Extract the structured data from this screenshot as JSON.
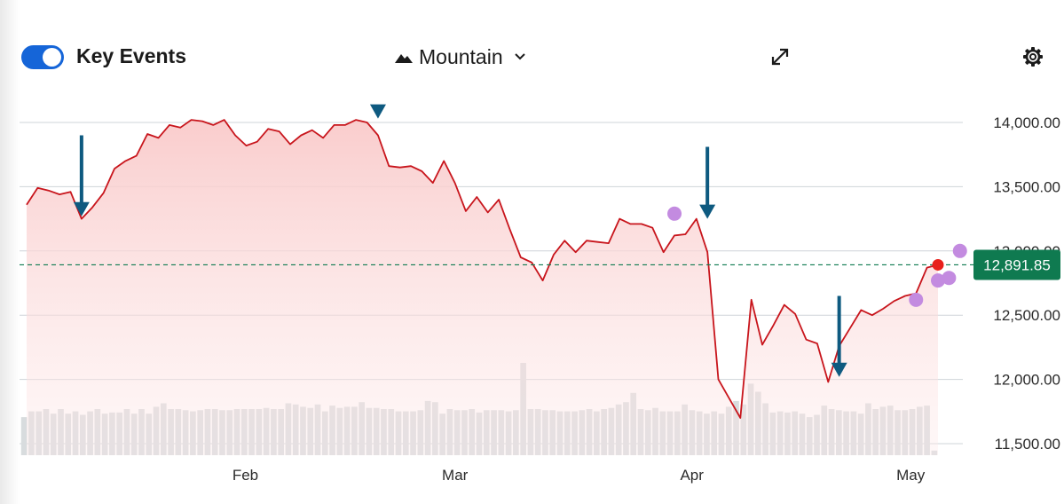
{
  "toolbar": {
    "toggle_label": "Key Events",
    "toggle_on": true,
    "chart_type_label": "Mountain",
    "chart_type_icon": "mountain-icon",
    "dropdown_icon": "chevron-down-icon",
    "expand_icon": "expand-arrows-icon",
    "settings_icon": "gear-icon"
  },
  "colors": {
    "line": "#c8151c",
    "area_top": "#f9caca",
    "volume": "#d8dcde",
    "grid": "#cfd4d8",
    "accent": "#1565d8",
    "price_tag": "#0f7a50",
    "event_dot": "#c38be0",
    "last_dot": "#e8211c",
    "arrow": "#0e5a80"
  },
  "chart_data": {
    "type": "area",
    "title": "",
    "xlabel": "",
    "ylabel": "",
    "x_range": [
      0,
      100
    ],
    "ylim": [
      11450,
      14130
    ],
    "y_ticks": [
      11500,
      12000,
      12500,
      13000,
      13500,
      14000
    ],
    "y_tick_labels": [
      "11,500.00",
      "12,000.00",
      "12,500.00",
      "13,000.00",
      "13,500.00",
      "14,000.00"
    ],
    "x_ticks": [
      {
        "label": "Feb",
        "x": 24
      },
      {
        "label": "Mar",
        "x": 47
      },
      {
        "label": "Apr",
        "x": 73
      },
      {
        "label": "May",
        "x": 97
      }
    ],
    "grid": true,
    "series": [
      {
        "values": [
          [
            0,
            13360
          ],
          [
            1,
            13490
          ],
          [
            2,
            13470
          ],
          [
            3,
            13440
          ],
          [
            4,
            13460
          ],
          [
            5,
            13250
          ],
          [
            6,
            13340
          ],
          [
            7,
            13450
          ],
          [
            8,
            13640
          ],
          [
            9,
            13700
          ],
          [
            10,
            13740
          ],
          [
            11,
            13910
          ],
          [
            12,
            13880
          ],
          [
            13,
            13980
          ],
          [
            14,
            13960
          ],
          [
            15,
            14020
          ],
          [
            16,
            14010
          ],
          [
            17,
            13980
          ],
          [
            18,
            14020
          ],
          [
            19,
            13900
          ],
          [
            20,
            13820
          ],
          [
            21,
            13850
          ],
          [
            22,
            13950
          ],
          [
            23,
            13930
          ],
          [
            24,
            13830
          ],
          [
            25,
            13900
          ],
          [
            26,
            13940
          ],
          [
            27,
            13880
          ],
          [
            28,
            13980
          ],
          [
            29,
            13980
          ],
          [
            30,
            14020
          ],
          [
            31,
            14000
          ],
          [
            32,
            13900
          ],
          [
            33,
            13660
          ],
          [
            34,
            13650
          ],
          [
            35,
            13660
          ],
          [
            36,
            13620
          ],
          [
            37,
            13530
          ],
          [
            38,
            13700
          ],
          [
            39,
            13530
          ],
          [
            40,
            13310
          ],
          [
            41,
            13420
          ],
          [
            42,
            13300
          ],
          [
            43,
            13400
          ],
          [
            44,
            13170
          ],
          [
            45,
            12950
          ],
          [
            46,
            12910
          ],
          [
            47,
            12770
          ],
          [
            48,
            12970
          ],
          [
            49,
            13080
          ],
          [
            50,
            12990
          ],
          [
            51,
            13080
          ],
          [
            52,
            13070
          ],
          [
            53,
            13060
          ],
          [
            54,
            13250
          ],
          [
            55,
            13210
          ],
          [
            56,
            13210
          ],
          [
            57,
            13180
          ],
          [
            58,
            12990
          ],
          [
            59,
            13120
          ],
          [
            60,
            13130
          ],
          [
            61,
            13250
          ],
          [
            62,
            12990
          ],
          [
            63,
            12000
          ],
          [
            64,
            11850
          ],
          [
            65,
            11700
          ],
          [
            66,
            12620
          ],
          [
            67,
            12270
          ],
          [
            68,
            12420
          ],
          [
            69,
            12580
          ],
          [
            70,
            12510
          ],
          [
            71,
            12310
          ],
          [
            72,
            12280
          ],
          [
            73,
            11980
          ],
          [
            74,
            12260
          ],
          [
            75,
            12400
          ],
          [
            76,
            12540
          ],
          [
            77,
            12500
          ],
          [
            78,
            12550
          ],
          [
            79,
            12610
          ],
          [
            80,
            12650
          ],
          [
            81,
            12670
          ],
          [
            82,
            12870
          ],
          [
            83,
            12891.85
          ]
        ]
      }
    ],
    "volume_relative": [
      0.33,
      0.38,
      0.38,
      0.4,
      0.36,
      0.4,
      0.36,
      0.38,
      0.35,
      0.38,
      0.4,
      0.36,
      0.37,
      0.37,
      0.4,
      0.36,
      0.4,
      0.36,
      0.42,
      0.45,
      0.4,
      0.4,
      0.39,
      0.38,
      0.39,
      0.4,
      0.4,
      0.39,
      0.39,
      0.4,
      0.4,
      0.4,
      0.4,
      0.41,
      0.4,
      0.4,
      0.45,
      0.44,
      0.42,
      0.41,
      0.44,
      0.38,
      0.43,
      0.41,
      0.42,
      0.42,
      0.46,
      0.41,
      0.41,
      0.4,
      0.4,
      0.38,
      0.38,
      0.38,
      0.39,
      0.47,
      0.46,
      0.36,
      0.4,
      0.39,
      0.39,
      0.4,
      0.37,
      0.39,
      0.39,
      0.39,
      0.38,
      0.39,
      0.8,
      0.4,
      0.4,
      0.39,
      0.39,
      0.38,
      0.38,
      0.38,
      0.39,
      0.4,
      0.38,
      0.4,
      0.41,
      0.44,
      0.46,
      0.54,
      0.4,
      0.39,
      0.41,
      0.38,
      0.38,
      0.38,
      0.44,
      0.39,
      0.38,
      0.36,
      0.38,
      0.36,
      0.42,
      0.47,
      0.44,
      0.62,
      0.55,
      0.45,
      0.37,
      0.38,
      0.37,
      0.38,
      0.36,
      0.33,
      0.35,
      0.43,
      0.4,
      0.39,
      0.38,
      0.38,
      0.36,
      0.45,
      0.4,
      0.42,
      0.43,
      0.39,
      0.39,
      0.4,
      0.42,
      0.43,
      0.04
    ],
    "last_price": 12891.85,
    "last_price_label": "12,891.85",
    "event_dots": [
      [
        59,
        13290
      ],
      [
        81,
        12620
      ],
      [
        83,
        12770
      ],
      [
        84,
        12790
      ],
      [
        85,
        13000
      ]
    ],
    "arrows": [
      {
        "x": 5,
        "y_from": 13900,
        "y_to": 13270
      },
      {
        "x": 32,
        "y_from": 14130,
        "y_to": 14030
      },
      {
        "x": 62,
        "y_from": 13810,
        "y_to": 13250
      },
      {
        "x": 74,
        "y_from": 12650,
        "y_to": 12020
      }
    ]
  }
}
